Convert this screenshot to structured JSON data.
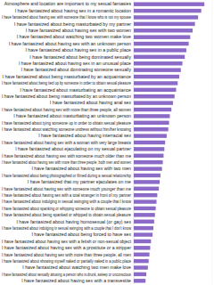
{
  "chart_data": {
    "type": "bar",
    "orientation": "horizontal",
    "color": "#8c6bc8",
    "xlim": [
      0,
      100
    ],
    "tick_labels": false,
    "grid": false,
    "categories": [
      "Atmosphere and location are important to my sexual fantasies",
      "I have fantasized about having sex in a romantic location",
      "I have fantasized about having sex with someone that I know who is not my spouse",
      "I have fantasized about being masturbated by my partner",
      "I have fantasized about having sex with two women",
      "I have fantasized about watching two women make love",
      "I have fantasized about having sex with an unknown person",
      "I have fantasized about having sex in a public place",
      "I have fantasized about being dominated sexually",
      "I have fantasized about having sex in an unusual place",
      "I have fantasized about dominating someone sexually",
      "I have fantasized about being masturbated by an acquaintance",
      "I have fantasized about being tied up by someone in order to obtain sexual pleasure",
      "I have fantasized about masturbating an acquaintance",
      "I have fantasized about being masturbated by an unknown person",
      "I have fantasized about having anal sex",
      "I have fantasized about having sex with more than three people, all women",
      "I have fantasized about masturbating an unknown person",
      "I have fantasized about tying someone up in order to obtain sexual pleasure",
      "I have fantasized about watching someone undress without him/her knowing",
      "I have fantasized about having interracial sex",
      "I have fantasized about having sex with a woman with very large breasts",
      "I have fantasized about ejaculating on my sexual partner",
      "I have fantasized about having sex with someone much older than me",
      "I have fantasized about having sex with more than three people, both men and women",
      "I have fantasized about having sex with two men",
      "I have fantasized about being photographed or filmed during a sexual relationship",
      "I have fantasized that my partner ejaculates on me",
      "I have fantasized about having sex with someone much younger than me",
      "I have fantasized about having sex with a total stranger in front of my partner",
      "I have fantasized about indulging in sexual swinging with a couple that I know",
      "I have fantasized about spanking or whipping someone to obtain sexual pleasure",
      "I have fantasized about being spanked or whipped to obtain sexual pleasure",
      "I have fantasized about having homosexual (or gay) sex",
      "I have fantasized about indulging in sexual swinging with a couple that I don't know",
      "I have fantasized about being forced to have sex",
      "I have fantasized about having sex with a fetish or non-sexual object",
      "I have fantasized about having sex with a prostitute or a stripper",
      "I have fantasized about having sex with more than three people, all men",
      "I have fantasized about showing myself naked or partially naked in a public place",
      "I have fantasized about watching two men make love",
      "I have fantasized about sexually abusing a person who is drunk, asleep or unconscious",
      "I have fantasized about having sex with a transvestite"
    ],
    "values": [
      90,
      86,
      82,
      78,
      75,
      72,
      70,
      67,
      65,
      62,
      60,
      58,
      56,
      54,
      52,
      50,
      48,
      46,
      45,
      44,
      42,
      40,
      39,
      38,
      37,
      36,
      34,
      33,
      32,
      30,
      29,
      28,
      27,
      26,
      25,
      24,
      22,
      21,
      20,
      19,
      18,
      16,
      15
    ]
  }
}
